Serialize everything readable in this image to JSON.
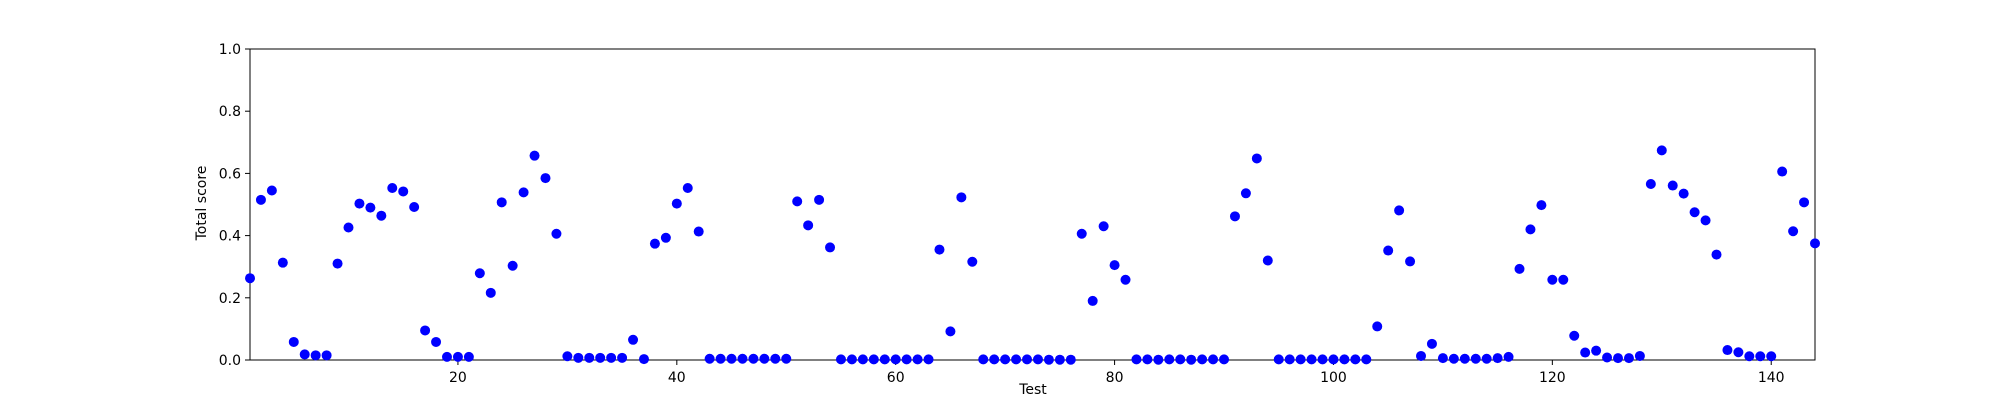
{
  "chart_data": {
    "type": "scatter",
    "title": "",
    "xlabel": "Test",
    "ylabel": "Total score",
    "xlim": [
      1,
      144
    ],
    "ylim": [
      0,
      1
    ],
    "xticks": [
      20,
      40,
      60,
      80,
      100,
      120,
      140
    ],
    "yticks": [
      0.0,
      0.2,
      0.4,
      0.6,
      0.8,
      1.0
    ],
    "ytick_labels": [
      "0.0",
      "0.2",
      "0.4",
      "0.6",
      "0.8",
      "1.0"
    ],
    "grid": false,
    "legend": "none",
    "marker_color": "#0000ff",
    "x": [
      1,
      2,
      3,
      4,
      5,
      6,
      7,
      8,
      9,
      10,
      11,
      12,
      13,
      14,
      15,
      16,
      17,
      18,
      19,
      20,
      21,
      22,
      23,
      24,
      25,
      26,
      27,
      28,
      29,
      30,
      31,
      32,
      33,
      34,
      35,
      36,
      37,
      38,
      39,
      40,
      41,
      42,
      43,
      44,
      45,
      46,
      47,
      48,
      49,
      50,
      51,
      52,
      53,
      54,
      55,
      56,
      57,
      58,
      59,
      60,
      61,
      62,
      63,
      64,
      65,
      66,
      67,
      68,
      69,
      70,
      71,
      72,
      73,
      74,
      75,
      76,
      77,
      78,
      79,
      80,
      81,
      82,
      83,
      84,
      85,
      86,
      87,
      88,
      89,
      90,
      91,
      92,
      93,
      94,
      95,
      96,
      97,
      98,
      99,
      100,
      101,
      102,
      103,
      104,
      105,
      106,
      107,
      108,
      109,
      110,
      111,
      112,
      113,
      114,
      115,
      116,
      117,
      118,
      119,
      120,
      121,
      122,
      123,
      124,
      125,
      126,
      127,
      128,
      129,
      130,
      131,
      132,
      133,
      134,
      135,
      136,
      137,
      138,
      139,
      140,
      141,
      142,
      143,
      144
    ],
    "y": [
      0.263,
      0.515,
      0.545,
      0.313,
      0.058,
      0.018,
      0.015,
      0.015,
      0.31,
      0.426,
      0.503,
      0.49,
      0.464,
      0.553,
      0.542,
      0.492,
      0.095,
      0.058,
      0.01,
      0.01,
      0.01,
      0.279,
      0.216,
      0.507,
      0.303,
      0.539,
      0.657,
      0.585,
      0.406,
      0.012,
      0.007,
      0.007,
      0.007,
      0.007,
      0.007,
      0.065,
      0.003,
      0.374,
      0.393,
      0.503,
      0.553,
      0.413,
      0.004,
      0.004,
      0.004,
      0.004,
      0.004,
      0.004,
      0.004,
      0.004,
      0.51,
      0.433,
      0.515,
      0.362,
      0.002,
      0.002,
      0.002,
      0.002,
      0.002,
      0.002,
      0.002,
      0.002,
      0.002,
      0.355,
      0.092,
      0.523,
      0.316,
      0.002,
      0.002,
      0.002,
      0.002,
      0.002,
      0.002,
      0.001,
      0.001,
      0.001,
      0.406,
      0.19,
      0.43,
      0.305,
      0.258,
      0.002,
      0.002,
      0.001,
      0.002,
      0.002,
      0.001,
      0.002,
      0.002,
      0.002,
      0.462,
      0.536,
      0.648,
      0.32,
      0.002,
      0.002,
      0.002,
      0.002,
      0.002,
      0.002,
      0.002,
      0.002,
      0.002,
      0.108,
      0.352,
      0.481,
      0.317,
      0.013,
      0.052,
      0.006,
      0.004,
      0.004,
      0.004,
      0.004,
      0.006,
      0.01,
      0.293,
      0.42,
      0.498,
      0.258,
      0.258,
      0.078,
      0.024,
      0.03,
      0.008,
      0.006,
      0.006,
      0.013,
      0.566,
      0.674,
      0.561,
      0.535,
      0.475,
      0.449,
      0.339,
      0.032,
      0.025,
      0.012,
      0.012,
      0.012,
      0.606,
      0.414,
      0.507,
      0.375
    ]
  }
}
